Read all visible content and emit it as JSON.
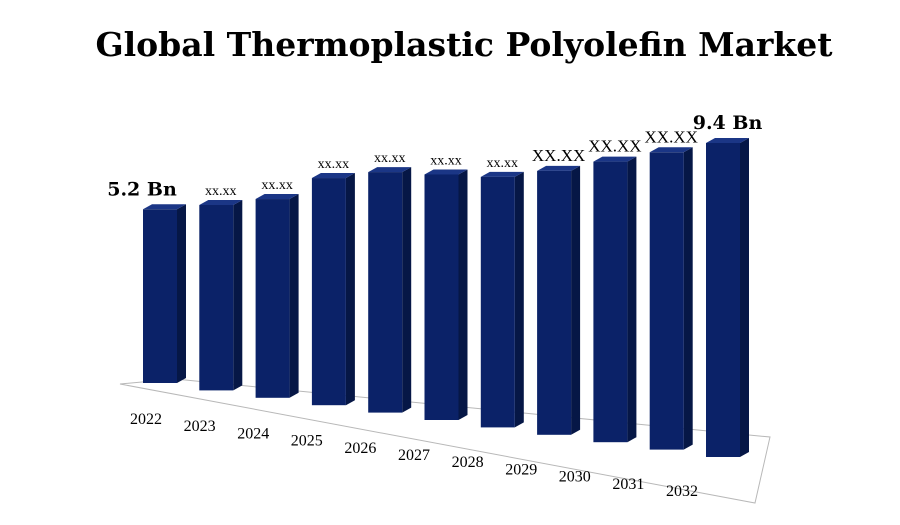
{
  "chart_data": {
    "type": "bar",
    "title": "Global Thermoplastic Polyolefin Market",
    "xlabel": "",
    "ylabel": "",
    "categories": [
      "2022",
      "2023",
      "2024",
      "2025",
      "2026",
      "2027",
      "2028",
      "2029",
      "2030",
      "2031",
      "2032"
    ],
    "values": [
      5.2,
      5.55,
      5.95,
      6.8,
      7.2,
      7.35,
      7.5,
      7.9,
      8.4,
      8.9,
      9.4
    ],
    "data_labels": [
      "5.2 Bn",
      "xx.xx",
      "xx.xx",
      "xx.xx",
      "xx.xx",
      "xx.xx",
      "xx.xx",
      "XX.XX",
      "XX.XX",
      "XX.XX",
      "9.4 Bn"
    ],
    "ylim": [
      0,
      10
    ],
    "grid": false,
    "legend": "none",
    "style": "3d-bar",
    "colors": {
      "bar_front": "#0b2268",
      "bar_side": "#061746",
      "bar_top": "#1b3686",
      "floor_stroke": "#b8b8b8"
    }
  }
}
